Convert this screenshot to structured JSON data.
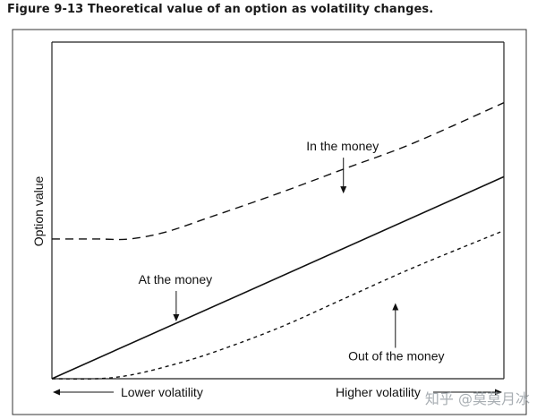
{
  "figure_title": "Figure 9-13  Theoretical value of an option as volatility changes.",
  "watermark": "知乎 @莫莫月冰",
  "chart_data": {
    "type": "line",
    "title": "Figure 9-13  Theoretical value of an option as volatility changes.",
    "ylabel": "Option value",
    "x_axis_left_label": "Lower volatility",
    "x_axis_right_label": "Higher volatility",
    "xlim": [
      0,
      100
    ],
    "ylim": [
      0,
      100
    ],
    "grid": false,
    "series": [
      {
        "name": "In the money",
        "style": "dashed",
        "x": [
          0,
          10,
          17,
          25,
          35,
          50,
          65,
          80,
          100
        ],
        "y": [
          41.5,
          41.5,
          41.5,
          43.5,
          48,
          55,
          62.5,
          70,
          82
        ]
      },
      {
        "name": "At the money",
        "style": "solid",
        "x": [
          0,
          100
        ],
        "y": [
          0,
          60
        ]
      },
      {
        "name": "Out of the money",
        "style": "dotted",
        "x": [
          0,
          10,
          17,
          25,
          35,
          50,
          65,
          80,
          100
        ],
        "y": [
          0,
          0,
          1,
          3.5,
          7.5,
          15,
          24,
          33,
          44
        ]
      }
    ],
    "annotations": [
      {
        "text": "In the money",
        "series": "In the money",
        "point_x": 64.5,
        "point_y": 54.5
      },
      {
        "text": "At the money",
        "series": "At the money",
        "point_x": 27.5,
        "point_y": 16.5
      },
      {
        "text": "Out of the money",
        "series": "Out of the money",
        "point_x": 76,
        "point_y": 23
      }
    ]
  }
}
